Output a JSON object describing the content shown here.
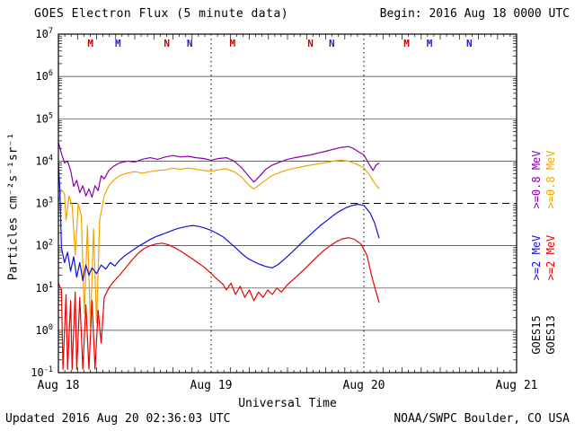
{
  "header": {
    "title": "GOES Electron Flux (5 minute data)",
    "begin": "Begin: 2016 Aug 18 0000 UTC"
  },
  "footer": {
    "updated": "Updated 2016 Aug 20 02:36:03 UTC",
    "source": "NOAA/SWPC Boulder, CO USA"
  },
  "chart_data": {
    "type": "line",
    "title": "GOES Electron Flux (5 minute data)",
    "xlabel": "Universal Time",
    "ylabel": "Particles cm⁻²s⁻¹sr⁻¹",
    "yscale": "log",
    "x_unit": "days since 2016 Aug 18 0000 UTC",
    "xlim": [
      0,
      3
    ],
    "ylim_log10": [
      -1,
      7
    ],
    "xticks": [
      {
        "t": 0,
        "label": "Aug 18"
      },
      {
        "t": 1,
        "label": "Aug 19"
      },
      {
        "t": 2,
        "label": "Aug 20"
      },
      {
        "t": 3,
        "label": "Aug 21"
      }
    ],
    "ytick_exponents": [
      -1,
      0,
      1,
      2,
      3,
      4,
      5,
      6,
      7
    ],
    "threshold_line": {
      "value": 1000,
      "style": "dashed"
    },
    "day_gridlines_t": [
      1,
      2
    ],
    "event_markers": [
      {
        "t": 0.21,
        "label": "M",
        "color": "#cc0000"
      },
      {
        "t": 0.39,
        "label": "M",
        "color": "#2222cc"
      },
      {
        "t": 0.71,
        "label": "N",
        "color": "#cc0000"
      },
      {
        "t": 0.86,
        "label": "N",
        "color": "#2222cc"
      },
      {
        "t": 1.14,
        "label": "M",
        "color": "#cc0000"
      },
      {
        "t": 1.65,
        "label": "N",
        "color": "#cc0000"
      },
      {
        "t": 1.79,
        "label": "N",
        "color": "#2222cc"
      },
      {
        "t": 2.28,
        "label": "M",
        "color": "#cc0000"
      },
      {
        "t": 2.43,
        "label": "M",
        "color": "#2222cc"
      },
      {
        "t": 2.69,
        "label": "N",
        "color": "#2222cc"
      }
    ],
    "right_legend": {
      "columns": [
        {
          "satellite": "GOES15",
          "labels": [
            {
              "text": ">=0.8 MeV",
              "color": "#8800aa"
            },
            {
              "text": ">=2 MeV",
              "color": "#1111dd"
            }
          ]
        },
        {
          "satellite": "GOES13",
          "labels": [
            {
              "text": ">=0.8 MeV",
              "color": "#efa500"
            },
            {
              "text": ">=2 MeV",
              "color": "#ee0000"
            }
          ]
        }
      ]
    },
    "series": [
      {
        "name": "GOES15 >=0.8 MeV",
        "color": "#8800aa",
        "points": [
          [
            0,
            28000
          ],
          [
            0.02,
            15000
          ],
          [
            0.04,
            9000
          ],
          [
            0.06,
            10000
          ],
          [
            0.08,
            6000
          ],
          [
            0.1,
            2500
          ],
          [
            0.12,
            3500
          ],
          [
            0.14,
            1800
          ],
          [
            0.16,
            2600
          ],
          [
            0.18,
            1500
          ],
          [
            0.2,
            2200
          ],
          [
            0.22,
            1400
          ],
          [
            0.24,
            2600
          ],
          [
            0.26,
            2000
          ],
          [
            0.28,
            4500
          ],
          [
            0.3,
            3800
          ],
          [
            0.33,
            6000
          ],
          [
            0.36,
            7500
          ],
          [
            0.4,
            9000
          ],
          [
            0.45,
            10000
          ],
          [
            0.5,
            9500
          ],
          [
            0.55,
            11000
          ],
          [
            0.6,
            12000
          ],
          [
            0.65,
            11000
          ],
          [
            0.7,
            12500
          ],
          [
            0.75,
            13500
          ],
          [
            0.8,
            12500
          ],
          [
            0.85,
            13000
          ],
          [
            0.9,
            12000
          ],
          [
            0.95,
            11500
          ],
          [
            1,
            10500
          ],
          [
            1.05,
            11500
          ],
          [
            1.1,
            12000
          ],
          [
            1.15,
            10000
          ],
          [
            1.2,
            7000
          ],
          [
            1.25,
            4200
          ],
          [
            1.28,
            3200
          ],
          [
            1.32,
            4500
          ],
          [
            1.36,
            6500
          ],
          [
            1.4,
            8000
          ],
          [
            1.45,
            9500
          ],
          [
            1.5,
            11000
          ],
          [
            1.55,
            12000
          ],
          [
            1.6,
            13000
          ],
          [
            1.65,
            14000
          ],
          [
            1.7,
            15500
          ],
          [
            1.75,
            17000
          ],
          [
            1.8,
            19000
          ],
          [
            1.85,
            21000
          ],
          [
            1.9,
            22000
          ],
          [
            1.93,
            20000
          ],
          [
            1.96,
            17000
          ],
          [
            2,
            14000
          ],
          [
            2.03,
            9000
          ],
          [
            2.06,
            6000
          ],
          [
            2.08,
            8000
          ],
          [
            2.1,
            9000
          ]
        ]
      },
      {
        "name": "GOES13 >=0.8 MeV",
        "color": "#efa500",
        "points": [
          [
            0,
            1100
          ],
          [
            0.02,
            2100
          ],
          [
            0.04,
            1700
          ],
          [
            0.05,
            400
          ],
          [
            0.07,
            1500
          ],
          [
            0.09,
            900
          ],
          [
            0.11,
            60
          ],
          [
            0.13,
            1000
          ],
          [
            0.15,
            500
          ],
          [
            0.17,
            2.5
          ],
          [
            0.19,
            300
          ],
          [
            0.21,
            1.2
          ],
          [
            0.23,
            250
          ],
          [
            0.25,
            1.5
          ],
          [
            0.27,
            400
          ],
          [
            0.3,
            1500
          ],
          [
            0.33,
            2600
          ],
          [
            0.36,
            3500
          ],
          [
            0.4,
            4500
          ],
          [
            0.45,
            5200
          ],
          [
            0.5,
            5600
          ],
          [
            0.55,
            5200
          ],
          [
            0.6,
            5600
          ],
          [
            0.65,
            6000
          ],
          [
            0.7,
            6200
          ],
          [
            0.75,
            6800
          ],
          [
            0.8,
            6400
          ],
          [
            0.85,
            6800
          ],
          [
            0.9,
            6400
          ],
          [
            0.95,
            6000
          ],
          [
            1,
            5800
          ],
          [
            1.05,
            6200
          ],
          [
            1.1,
            6600
          ],
          [
            1.15,
            5600
          ],
          [
            1.2,
            4200
          ],
          [
            1.25,
            2600
          ],
          [
            1.28,
            2200
          ],
          [
            1.32,
            2800
          ],
          [
            1.36,
            3600
          ],
          [
            1.4,
            4600
          ],
          [
            1.45,
            5400
          ],
          [
            1.5,
            6200
          ],
          [
            1.55,
            6800
          ],
          [
            1.6,
            7400
          ],
          [
            1.65,
            8000
          ],
          [
            1.7,
            8600
          ],
          [
            1.75,
            9200
          ],
          [
            1.8,
            10000
          ],
          [
            1.85,
            10500
          ],
          [
            1.9,
            10000
          ],
          [
            1.95,
            8500
          ],
          [
            2,
            7000
          ],
          [
            2.04,
            4500
          ],
          [
            2.07,
            3000
          ],
          [
            2.1,
            2200
          ]
        ]
      },
      {
        "name": "GOES15 >=2 MeV",
        "color": "#1111dd",
        "points": [
          [
            0,
            9000
          ],
          [
            0.01,
            2000
          ],
          [
            0.02,
            90
          ],
          [
            0.04,
            40
          ],
          [
            0.06,
            70
          ],
          [
            0.08,
            25
          ],
          [
            0.1,
            55
          ],
          [
            0.12,
            18
          ],
          [
            0.14,
            40
          ],
          [
            0.16,
            15
          ],
          [
            0.18,
            35
          ],
          [
            0.2,
            20
          ],
          [
            0.22,
            30
          ],
          [
            0.25,
            22
          ],
          [
            0.28,
            35
          ],
          [
            0.31,
            28
          ],
          [
            0.34,
            40
          ],
          [
            0.37,
            33
          ],
          [
            0.4,
            45
          ],
          [
            0.44,
            60
          ],
          [
            0.48,
            75
          ],
          [
            0.52,
            95
          ],
          [
            0.56,
            115
          ],
          [
            0.6,
            140
          ],
          [
            0.64,
            165
          ],
          [
            0.68,
            185
          ],
          [
            0.72,
            210
          ],
          [
            0.76,
            240
          ],
          [
            0.8,
            265
          ],
          [
            0.84,
            285
          ],
          [
            0.88,
            300
          ],
          [
            0.92,
            285
          ],
          [
            0.96,
            260
          ],
          [
            1,
            230
          ],
          [
            1.04,
            195
          ],
          [
            1.08,
            160
          ],
          [
            1.12,
            120
          ],
          [
            1.16,
            90
          ],
          [
            1.2,
            65
          ],
          [
            1.24,
            50
          ],
          [
            1.28,
            42
          ],
          [
            1.32,
            36
          ],
          [
            1.36,
            32
          ],
          [
            1.4,
            30
          ],
          [
            1.44,
            36
          ],
          [
            1.48,
            48
          ],
          [
            1.52,
            65
          ],
          [
            1.56,
            90
          ],
          [
            1.6,
            125
          ],
          [
            1.64,
            170
          ],
          [
            1.68,
            230
          ],
          [
            1.72,
            310
          ],
          [
            1.76,
            400
          ],
          [
            1.8,
            520
          ],
          [
            1.84,
            650
          ],
          [
            1.88,
            780
          ],
          [
            1.92,
            880
          ],
          [
            1.96,
            950
          ],
          [
            2,
            900
          ],
          [
            2.04,
            600
          ],
          [
            2.07,
            350
          ],
          [
            2.1,
            150
          ]
        ]
      },
      {
        "name": "GOES13 >=2 MeV",
        "color": "#ee0000",
        "points": [
          [
            0,
            13
          ],
          [
            0.02,
            9
          ],
          [
            0.03,
            0.12
          ],
          [
            0.05,
            7
          ],
          [
            0.06,
            0.12
          ],
          [
            0.08,
            5
          ],
          [
            0.09,
            0.12
          ],
          [
            0.11,
            8
          ],
          [
            0.12,
            0.12
          ],
          [
            0.14,
            6
          ],
          [
            0.16,
            0.12
          ],
          [
            0.18,
            4
          ],
          [
            0.2,
            0.12
          ],
          [
            0.22,
            5
          ],
          [
            0.24,
            0.12
          ],
          [
            0.26,
            3
          ],
          [
            0.28,
            0.5
          ],
          [
            0.3,
            6
          ],
          [
            0.33,
            10
          ],
          [
            0.36,
            14
          ],
          [
            0.4,
            20
          ],
          [
            0.44,
            30
          ],
          [
            0.48,
            45
          ],
          [
            0.52,
            65
          ],
          [
            0.56,
            85
          ],
          [
            0.6,
            100
          ],
          [
            0.64,
            110
          ],
          [
            0.68,
            115
          ],
          [
            0.72,
            105
          ],
          [
            0.76,
            90
          ],
          [
            0.8,
            75
          ],
          [
            0.84,
            60
          ],
          [
            0.88,
            48
          ],
          [
            0.92,
            38
          ],
          [
            0.96,
            30
          ],
          [
            1,
            22
          ],
          [
            1.04,
            16
          ],
          [
            1.08,
            12
          ],
          [
            1.1,
            9
          ],
          [
            1.13,
            13
          ],
          [
            1.16,
            7
          ],
          [
            1.19,
            11
          ],
          [
            1.22,
            6
          ],
          [
            1.25,
            9
          ],
          [
            1.28,
            5
          ],
          [
            1.31,
            8
          ],
          [
            1.34,
            6
          ],
          [
            1.37,
            9
          ],
          [
            1.4,
            7
          ],
          [
            1.43,
            10
          ],
          [
            1.46,
            8
          ],
          [
            1.5,
            12
          ],
          [
            1.54,
            16
          ],
          [
            1.58,
            22
          ],
          [
            1.62,
            30
          ],
          [
            1.66,
            42
          ],
          [
            1.7,
            58
          ],
          [
            1.74,
            78
          ],
          [
            1.78,
            100
          ],
          [
            1.82,
            125
          ],
          [
            1.86,
            145
          ],
          [
            1.9,
            155
          ],
          [
            1.94,
            140
          ],
          [
            1.98,
            110
          ],
          [
            2.02,
            60
          ],
          [
            2.05,
            20
          ],
          [
            2.08,
            8
          ],
          [
            2.1,
            4.5
          ]
        ]
      }
    ]
  }
}
